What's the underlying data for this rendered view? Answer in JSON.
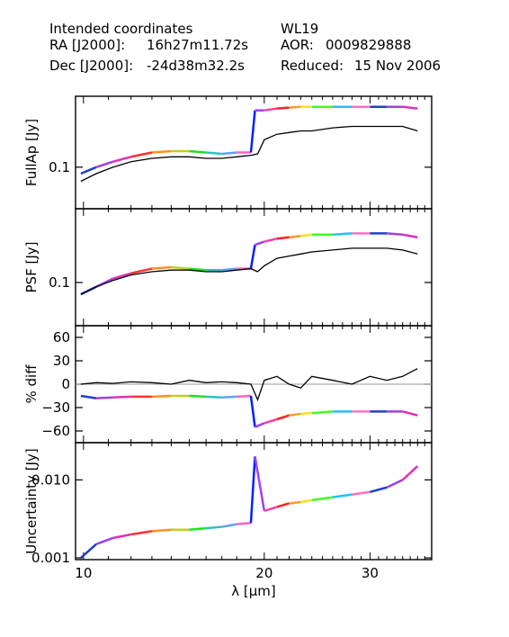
{
  "header": {
    "intended": "Intended coordinates",
    "ra_label": "RA  [J2000]:",
    "ra_value": "16h27m11.72s",
    "dec_label": "Dec [J2000]:",
    "dec_value": "-24d38m32.2s",
    "object": "WL19",
    "aor_label": "AOR:",
    "aor_value": "0009829888",
    "reduced_label": "Reduced:",
    "reduced_value": "15 Nov 2006"
  },
  "chart_data": [
    {
      "type": "line",
      "ylabel": "FullAp [Jy]",
      "yscale": "log",
      "ylim": [
        0.035,
        0.6
      ],
      "yticks": [
        0.1
      ],
      "ytick_labels": [
        "0.1"
      ],
      "xlim": [
        9.7,
        38
      ],
      "xscale": "log",
      "series": [
        {
          "name": "module orders",
          "color_list": [
            "#1f3fd0",
            "#9f3fe0",
            "#e030b0",
            "#ff3030",
            "#ff9020",
            "#c0d020",
            "#20e020",
            "#30c0c0",
            "#60a0f0",
            "#ff60c0",
            "#0020ff",
            "#a040ff",
            "#ff40a0",
            "#ff2020",
            "#ff9a30",
            "#ffe020",
            "#40ff20",
            "#20c0ff",
            "#ff70c0"
          ],
          "x": [
            9.9,
            10.5,
            11.2,
            12.0,
            13.0,
            14.0,
            15.0,
            16.0,
            17.0,
            18.0,
            19.0,
            19.3,
            20.0,
            21.0,
            22.0,
            23.0,
            24.0,
            26.0,
            28.0,
            30.0,
            32.0,
            34.0,
            36.0
          ],
          "y": [
            0.085,
            0.1,
            0.115,
            0.13,
            0.145,
            0.15,
            0.15,
            0.145,
            0.14,
            0.145,
            0.145,
            0.42,
            0.42,
            0.44,
            0.45,
            0.46,
            0.46,
            0.46,
            0.46,
            0.46,
            0.46,
            0.46,
            0.44
          ]
        },
        {
          "name": "black",
          "color": "#000000",
          "x": [
            9.9,
            10.5,
            11.2,
            12.0,
            13.0,
            14.0,
            15.0,
            16.0,
            17.0,
            18.0,
            19.0,
            19.5,
            20.0,
            21.0,
            22.0,
            23.0,
            24.0,
            26.0,
            28.0,
            30.0,
            32.0,
            34.0,
            36.0
          ],
          "y": [
            0.07,
            0.085,
            0.1,
            0.115,
            0.125,
            0.13,
            0.13,
            0.125,
            0.125,
            0.13,
            0.135,
            0.14,
            0.2,
            0.23,
            0.24,
            0.25,
            0.25,
            0.27,
            0.28,
            0.28,
            0.28,
            0.28,
            0.25
          ]
        }
      ]
    },
    {
      "type": "line",
      "ylabel": "PSF [Jy]",
      "yscale": "log",
      "ylim": [
        0.035,
        0.6
      ],
      "yticks": [
        0.1
      ],
      "ytick_labels": [
        "0.1"
      ],
      "xlim": [
        9.7,
        38
      ],
      "xscale": "log",
      "series": [
        {
          "name": "module orders",
          "color_list": [
            "#1f3fd0",
            "#9f3fe0",
            "#e030b0",
            "#ff3030",
            "#ff9020",
            "#c0d020",
            "#20e020",
            "#30c0c0",
            "#60a0f0",
            "#ff60c0",
            "#0020ff",
            "#a040ff",
            "#ff40a0",
            "#ff2020",
            "#ff9a30",
            "#ffe020",
            "#40ff20",
            "#20c0ff",
            "#ff70c0"
          ],
          "x": [
            9.9,
            10.5,
            11.2,
            12.0,
            13.0,
            14.0,
            15.0,
            16.0,
            17.0,
            18.0,
            19.0,
            19.3,
            20.0,
            21.0,
            22.0,
            23.0,
            24.0,
            26.0,
            28.0,
            30.0,
            32.0,
            34.0,
            36.0
          ],
          "y": [
            0.075,
            0.09,
            0.11,
            0.125,
            0.14,
            0.145,
            0.14,
            0.135,
            0.135,
            0.14,
            0.14,
            0.25,
            0.27,
            0.29,
            0.3,
            0.31,
            0.32,
            0.32,
            0.33,
            0.33,
            0.33,
            0.32,
            0.3
          ]
        },
        {
          "name": "black",
          "color": "#000000",
          "x": [
            9.9,
            10.5,
            11.2,
            12.0,
            13.0,
            14.0,
            15.0,
            16.0,
            17.0,
            18.0,
            19.0,
            19.5,
            20.0,
            21.0,
            22.0,
            23.0,
            24.0,
            26.0,
            28.0,
            30.0,
            32.0,
            34.0,
            36.0
          ],
          "y": [
            0.075,
            0.09,
            0.105,
            0.12,
            0.13,
            0.135,
            0.135,
            0.13,
            0.13,
            0.135,
            0.14,
            0.13,
            0.15,
            0.18,
            0.19,
            0.2,
            0.21,
            0.22,
            0.23,
            0.23,
            0.23,
            0.22,
            0.2
          ]
        }
      ]
    },
    {
      "type": "line",
      "ylabel": "% diff",
      "yscale": "linear",
      "ylim": [
        -75,
        75
      ],
      "yticks": [
        -60,
        -30,
        0,
        30,
        60
      ],
      "ytick_labels": [
        "−60",
        "−30",
        "0",
        "30",
        "60"
      ],
      "xlim": [
        9.7,
        38
      ],
      "xscale": "log",
      "series": [
        {
          "name": "module orders",
          "color_list": [
            "#1f3fd0",
            "#9f3fe0",
            "#e030b0",
            "#ff3030",
            "#ff9020",
            "#c0d020",
            "#20e020",
            "#30c0c0",
            "#60a0f0",
            "#ff60c0",
            "#0020ff",
            "#a040ff",
            "#ff40a0",
            "#ff2020",
            "#ff9a30",
            "#ffe020",
            "#40ff20",
            "#20c0ff",
            "#ff70c0"
          ],
          "x": [
            9.9,
            10.5,
            11.2,
            12.0,
            13.0,
            14.0,
            15.0,
            16.0,
            17.0,
            18.0,
            19.0,
            19.3,
            20.0,
            21.0,
            22.0,
            23.0,
            24.0,
            26.0,
            28.0,
            30.0,
            32.0,
            34.0,
            36.0
          ],
          "y": [
            -15,
            -18,
            -17,
            -16,
            -16,
            -15,
            -15,
            -16,
            -17,
            -16,
            -15,
            -55,
            -50,
            -45,
            -40,
            -38,
            -37,
            -35,
            -35,
            -35,
            -35,
            -35,
            -40
          ]
        },
        {
          "name": "black",
          "color": "#000000",
          "x": [
            9.9,
            10.5,
            11.2,
            12.0,
            13.0,
            14.0,
            15.0,
            16.0,
            17.0,
            18.0,
            19.0,
            19.5,
            20.0,
            21.0,
            22.0,
            23.0,
            24.0,
            26.0,
            28.0,
            30.0,
            32.0,
            34.0,
            36.0
          ],
          "y": [
            0,
            2,
            1,
            3,
            2,
            0,
            5,
            2,
            3,
            2,
            0,
            -20,
            5,
            10,
            0,
            -5,
            10,
            5,
            0,
            10,
            5,
            10,
            20
          ]
        }
      ],
      "reference_line": 0
    },
    {
      "type": "line",
      "ylabel": "Uncertainty [Jy]",
      "yscale": "log",
      "ylim": [
        0.00095,
        0.03
      ],
      "yticks": [
        0.001,
        0.01
      ],
      "ytick_labels": [
        "0.001",
        "0.010"
      ],
      "xlabel": "λ [μm]",
      "xlim": [
        9.7,
        38
      ],
      "xscale": "log",
      "xticks": [
        10,
        20,
        30
      ],
      "xtick_labels": [
        "10",
        "20",
        "30"
      ],
      "series": [
        {
          "name": "module orders",
          "color_list": [
            "#1f3fd0",
            "#9f3fe0",
            "#e030b0",
            "#ff3030",
            "#ff9020",
            "#c0d020",
            "#20e020",
            "#30c0c0",
            "#60a0f0",
            "#ff60c0",
            "#0020ff",
            "#a040ff",
            "#ff40a0",
            "#ff2020",
            "#ff9a30",
            "#ffe020",
            "#40ff20",
            "#20c0ff",
            "#ff70c0"
          ],
          "x": [
            9.9,
            10.5,
            11.2,
            12.0,
            13.0,
            14.0,
            15.0,
            16.0,
            17.0,
            18.0,
            19.0,
            19.3,
            20.0,
            21.0,
            22.0,
            23.0,
            24.0,
            26.0,
            28.0,
            30.0,
            32.0,
            34.0,
            36.0
          ],
          "y": [
            0.001,
            0.0015,
            0.0018,
            0.002,
            0.0022,
            0.0023,
            0.0023,
            0.0024,
            0.0025,
            0.0027,
            0.0028,
            0.02,
            0.004,
            0.0045,
            0.005,
            0.0052,
            0.0055,
            0.006,
            0.0065,
            0.007,
            0.008,
            0.01,
            0.015
          ]
        }
      ]
    }
  ]
}
